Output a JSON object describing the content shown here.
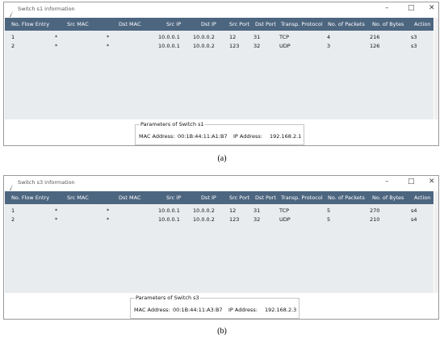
{
  "windows": [
    {
      "title": "Switch s1 information",
      "table": {
        "headers": [
          "No. Flow Entry",
          "Src MAC",
          "Dst MAC",
          "Src IP",
          "Dst IP",
          "Src Port",
          "Dst Port",
          "Transp. Protocol",
          "No. of Packets",
          "No. of Bytes",
          "Action"
        ],
        "rows": [
          [
            "1",
            "*",
            "*",
            "10.0.0.1",
            "10.0.0.2",
            "12",
            "31",
            "TCP",
            "4",
            "216",
            "s3"
          ],
          [
            "2",
            "*",
            "*",
            "10.0.0.1",
            "10.0.0.2",
            "123",
            "32",
            "UDP",
            "3",
            "126",
            "s3"
          ]
        ]
      },
      "params": {
        "legend": "Parameters of Switch s1",
        "mac_label": "MAC Address:",
        "mac": "00:1B:44:11:A1:B7",
        "ip_label": "IP Address:",
        "ip": "192.168.2.1"
      },
      "caption": "(a)"
    },
    {
      "title": "Switch s3 information",
      "table": {
        "headers": [
          "No. Flow Entry",
          "Src MAC",
          "Dst MAC",
          "Src IP",
          "Dst IP",
          "Src Port",
          "Dst Port",
          "Transp. Protocol",
          "No. of Packets",
          "No. of Bytes",
          "Action"
        ],
        "rows": [
          [
            "1",
            "*",
            "*",
            "10.0.0.1",
            "10.0.0.2",
            "12",
            "31",
            "TCP",
            "5",
            "270",
            "s4"
          ],
          [
            "2",
            "*",
            "*",
            "10.0.0.1",
            "10.0.0.2",
            "123",
            "32",
            "UDP",
            "5",
            "210",
            "s4"
          ]
        ]
      },
      "params": {
        "legend": "Parameters of Switch s3",
        "mac_label": "MAC Address:",
        "mac": "00:1B:44:11:A3:B7",
        "ip_label": "IP Address:",
        "ip": "192.168.2.3"
      },
      "caption": "(b)"
    }
  ]
}
